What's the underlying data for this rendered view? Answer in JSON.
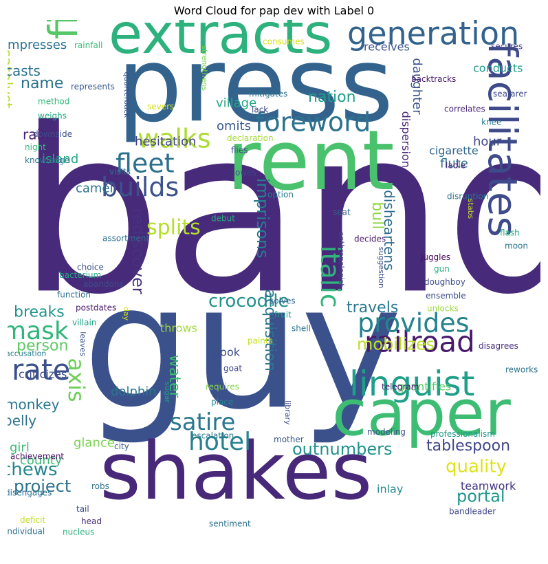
{
  "chart_data": {
    "type": "wordcloud",
    "title": "Word Cloud for pap dev with Label 0",
    "palette": "viridis",
    "background": "#ffffff",
    "words": [
      {
        "text": "band",
        "color": "#472a7a"
      },
      {
        "text": "guy",
        "color": "#3b518b"
      },
      {
        "text": "press",
        "color": "#33638d"
      },
      {
        "text": "rent",
        "color": "#4ac16d"
      },
      {
        "text": "shakes",
        "color": "#482878"
      },
      {
        "text": "caper",
        "color": "#3dbc74"
      },
      {
        "text": "extracts",
        "color": "#2db27d"
      },
      {
        "text": "facilitates",
        "color": "#3e4a89"
      },
      {
        "text": "finger",
        "color": "#56c667"
      },
      {
        "text": "linguist",
        "color": "#1f9e89"
      },
      {
        "text": "generation",
        "color": "#33638d"
      },
      {
        "text": "railroad",
        "color": "#481a6c"
      },
      {
        "text": "foreword",
        "color": "#2c728e"
      },
      {
        "text": "walks",
        "color": "#addc30"
      },
      {
        "text": "fleet",
        "color": "#2d708e"
      },
      {
        "text": "builds",
        "color": "#3b528b"
      },
      {
        "text": "provides",
        "color": "#25838e"
      },
      {
        "text": "sustains",
        "color": "#3e4a89"
      },
      {
        "text": "italic",
        "color": "#31b57b"
      },
      {
        "text": "mask",
        "color": "#31b57b"
      },
      {
        "text": "rate",
        "color": "#3b518b"
      },
      {
        "text": "hotel",
        "color": "#26828e"
      },
      {
        "text": "satire",
        "color": "#2a788e"
      },
      {
        "text": "axis",
        "color": "#6ece58"
      },
      {
        "text": "rediscover",
        "color": "#46337e"
      },
      {
        "text": "catalyst",
        "color": "#b5de2b"
      },
      {
        "text": "splits",
        "color": "#b5de2b"
      },
      {
        "text": "crocodile",
        "color": "#21918c"
      },
      {
        "text": "imprisons",
        "color": "#287c8e"
      },
      {
        "text": "outnumbers",
        "color": "#21918c"
      },
      {
        "text": "acquisition",
        "color": "#2a778e"
      },
      {
        "text": "water",
        "color": "#3fbc73"
      },
      {
        "text": "bull",
        "color": "#90d743"
      },
      {
        "text": "disheartens",
        "color": "#2f6c8e"
      },
      {
        "text": "nation",
        "color": "#1f9e89"
      },
      {
        "text": "travels",
        "color": "#2a788e"
      },
      {
        "text": "mobilizes",
        "color": "#bddf26"
      },
      {
        "text": "quality",
        "color": "#dde318"
      },
      {
        "text": "portal",
        "color": "#1f978b"
      },
      {
        "text": "project",
        "color": "#2c718e"
      },
      {
        "text": "chews",
        "color": "#25858e"
      },
      {
        "text": "tablespoon",
        "color": "#3f4788"
      },
      {
        "text": "person",
        "color": "#5ec962"
      },
      {
        "text": "breaks",
        "color": "#20928c"
      },
      {
        "text": "name",
        "color": "#2c728e"
      },
      {
        "text": "rain",
        "color": "#481f70"
      },
      {
        "text": "casts",
        "color": "#2c718e"
      },
      {
        "text": "impresses",
        "color": "#2c728e"
      },
      {
        "text": "receives",
        "color": "#3a538b"
      },
      {
        "text": "conducts",
        "color": "#1fa088"
      },
      {
        "text": "daughter",
        "color": "#3b528b"
      },
      {
        "text": "flute",
        "color": "#2e6e8e"
      },
      {
        "text": "cigarette",
        "color": "#31668e"
      },
      {
        "text": "hour",
        "color": "#3f4788"
      },
      {
        "text": "dispersion",
        "color": "#482576"
      },
      {
        "text": "village",
        "color": "#22a785"
      },
      {
        "text": "omits",
        "color": "#38588c"
      },
      {
        "text": "hesitation",
        "color": "#414287"
      },
      {
        "text": "camel",
        "color": "#2c738e"
      },
      {
        "text": "island",
        "color": "#22a785"
      },
      {
        "text": "monkey",
        "color": "#2a788e"
      },
      {
        "text": "belly",
        "color": "#2c718e"
      },
      {
        "text": "girl",
        "color": "#3dbc74"
      },
      {
        "text": "county",
        "color": "#3aba76"
      },
      {
        "text": "glance",
        "color": "#7ad151"
      },
      {
        "text": "dolphin",
        "color": "#2b758e"
      },
      {
        "text": "criticizes",
        "color": "#3d4e8a"
      },
      {
        "text": "book",
        "color": "#3e4c8a"
      },
      {
        "text": "quantifies",
        "color": "#58c765"
      },
      {
        "text": "teamwork",
        "color": "#453581"
      },
      {
        "text": "inlay",
        "color": "#23898e"
      },
      {
        "text": "throws",
        "color": "#a0da39"
      },
      {
        "text": "secures",
        "color": "#414487"
      },
      {
        "text": "rainfall",
        "color": "#3aba76"
      },
      {
        "text": "consumes",
        "color": "#d8e219"
      },
      {
        "text": "backtracks",
        "color": "#48186a"
      },
      {
        "text": "seafarer",
        "color": "#3e4989"
      },
      {
        "text": "represents",
        "color": "#38598c"
      },
      {
        "text": "method",
        "color": "#32b67a"
      },
      {
        "text": "weighs",
        "color": "#25ab82"
      },
      {
        "text": "strengthens",
        "color": "#7ad151"
      },
      {
        "text": "mitigates",
        "color": "#2d718e"
      },
      {
        "text": "correlates",
        "color": "#482878"
      },
      {
        "text": "knee",
        "color": "#287d8e"
      },
      {
        "text": "lack",
        "color": "#3f4889"
      },
      {
        "text": "severs",
        "color": "#d2e21b"
      },
      {
        "text": "quarterback",
        "color": "#3b518b"
      },
      {
        "text": "downside",
        "color": "#3c4f8a"
      },
      {
        "text": "night",
        "color": "#34b679"
      },
      {
        "text": "knowledge",
        "color": "#2b748e"
      },
      {
        "text": "visits",
        "color": "#2c738e"
      },
      {
        "text": "declaration",
        "color": "#a5db36"
      },
      {
        "text": "flies",
        "color": "#3f4889"
      },
      {
        "text": "owes",
        "color": "#404588"
      },
      {
        "text": "ladle",
        "color": "#472c7a"
      },
      {
        "text": "option",
        "color": "#2a788e"
      },
      {
        "text": "disruption",
        "color": "#2c728e"
      },
      {
        "text": "seat",
        "color": "#33638d"
      },
      {
        "text": "debut",
        "color": "#29af7f"
      },
      {
        "text": "stabs",
        "color": "#cae11f"
      },
      {
        "text": "flash",
        "color": "#25ac82"
      },
      {
        "text": "moon",
        "color": "#2c728e"
      },
      {
        "text": "assortment",
        "color": "#2e6f8e"
      },
      {
        "text": "decides",
        "color": "#481769"
      },
      {
        "text": "choice",
        "color": "#3a548c"
      },
      {
        "text": "bacterium",
        "color": "#23a983"
      },
      {
        "text": "abandons",
        "color": "#3e4c8a"
      },
      {
        "text": "function",
        "color": "#2c728e"
      },
      {
        "text": "postdates",
        "color": "#481769"
      },
      {
        "text": "villain",
        "color": "#1fa088"
      },
      {
        "text": "juggles",
        "color": "#46085c"
      },
      {
        "text": "gun",
        "color": "#2ab07f"
      },
      {
        "text": "doughboy",
        "color": "#3d4d8a"
      },
      {
        "text": "ensemble",
        "color": "#3e4a89"
      },
      {
        "text": "unlocks",
        "color": "#9bd93c"
      },
      {
        "text": "solves",
        "color": "#31688e"
      },
      {
        "text": "fruit",
        "color": "#1fa088"
      },
      {
        "text": "suggestion",
        "color": "#3c4f8a"
      },
      {
        "text": "anthropologist",
        "color": "#404588"
      },
      {
        "text": "shell",
        "color": "#2c718e"
      },
      {
        "text": "paints",
        "color": "#c2df23"
      },
      {
        "text": "day",
        "color": "#d0e11c"
      },
      {
        "text": "disagrees",
        "color": "#472f7d"
      },
      {
        "text": "accusation",
        "color": "#287d8e"
      },
      {
        "text": "leaves",
        "color": "#3b518b"
      },
      {
        "text": "goat",
        "color": "#3f4889"
      },
      {
        "text": "reworks",
        "color": "#2c738e"
      },
      {
        "text": "telegram",
        "color": "#482071"
      },
      {
        "text": "sugar",
        "color": "#1f9f88"
      },
      {
        "text": "requires",
        "color": "#86d549"
      },
      {
        "text": "place",
        "color": "#24868e"
      },
      {
        "text": "library",
        "color": "#3e4a89"
      },
      {
        "text": "modeling",
        "color": "#3b528b"
      },
      {
        "text": "professionalism",
        "color": "#1f9a8a"
      },
      {
        "text": "escalation",
        "color": "#2a778e"
      },
      {
        "text": "mother",
        "color": "#38588c"
      },
      {
        "text": "city",
        "color": "#34608d"
      },
      {
        "text": "achievement",
        "color": "#470d60"
      },
      {
        "text": "disengages",
        "color": "#2c728e"
      },
      {
        "text": "robs",
        "color": "#2d708e"
      },
      {
        "text": "bandleader",
        "color": "#404688"
      },
      {
        "text": "sentiment",
        "color": "#2b748e"
      },
      {
        "text": "tail",
        "color": "#3d4e8a"
      },
      {
        "text": "head",
        "color": "#472c7a"
      },
      {
        "text": "deficit",
        "color": "#c2df23"
      },
      {
        "text": "individual",
        "color": "#2d708e"
      },
      {
        "text": "nucleus",
        "color": "#2db27d"
      }
    ]
  }
}
